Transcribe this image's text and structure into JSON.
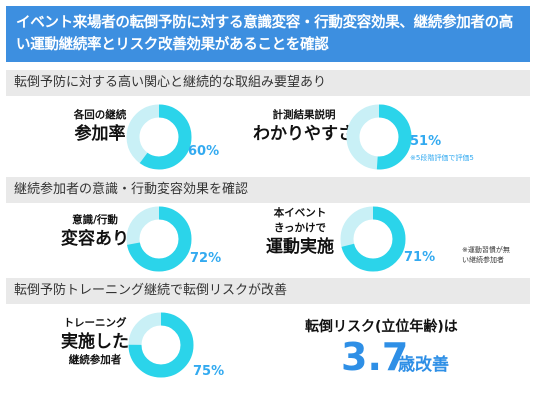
{
  "header": {
    "line1": "イベント来場者の転倒予防に対する意識変容・行動変容効果、継続参加者の高",
    "line2": "い運動継続率とリスク改善効果があることを確認"
  },
  "sections": [
    {
      "title": "転倒予防に対する高い関心と継続的な取組み要望あり"
    },
    {
      "title": "継続参加者の意識・行動変容効果を確認"
    },
    {
      "title": "転倒予防トレーニング継続で転倒リスクが改善"
    }
  ],
  "stats": [
    {
      "label_small": "各回の継続",
      "label_big": "参加率",
      "value": 60,
      "value_text": "60%"
    },
    {
      "label_small": "計測結果説明",
      "label_big": "わかりやすさ",
      "value": 51,
      "value_text": "51%",
      "note": "※5段階評価で評価5"
    },
    {
      "label_small": "意識/行動",
      "label_big": "変容あり",
      "value": 72,
      "value_text": "72%"
    },
    {
      "label_small1": "本イベント",
      "label_small2": "きっかけで",
      "label_big": "運動実施",
      "value": 71,
      "value_text": "71%",
      "note1": "※運動習慣が無",
      "note2": "い継続参加者"
    },
    {
      "label_small1": "トレーニング",
      "label_big": "実施した",
      "label_small2": "継続参加者",
      "value": 75,
      "value_text": "75%"
    }
  ],
  "risk": {
    "label": "転倒リスク(立位年齢)は",
    "value": "3.7",
    "unit": "歳改善"
  },
  "colors": {
    "header_bg": "#3d8fe0",
    "band_bg": "#e9e9e9",
    "donut_fill": "#2bd4ea",
    "donut_track": "#c9f0f6",
    "percent_text": "#33aaf0",
    "risk_text": "#2e8fe6"
  }
}
